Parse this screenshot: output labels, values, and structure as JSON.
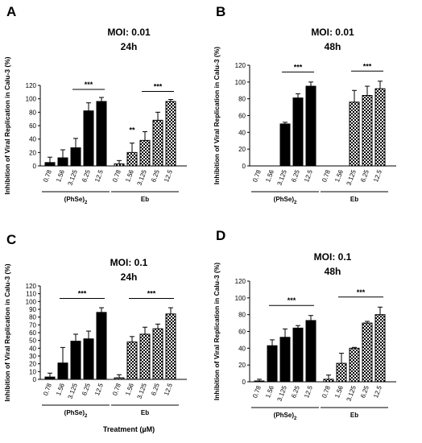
{
  "chart_data": [
    {
      "type": "bar",
      "panel": "A",
      "title": "MOI: 0.01",
      "subtitle": "24h",
      "ylabel": "Inhibition of Viral Replication in Calu-3 (%)",
      "xlabel": "",
      "ylim": [
        0,
        120
      ],
      "yticks": [
        "0",
        "20",
        "40",
        "60",
        "80",
        "100",
        "120"
      ],
      "groups": [
        {
          "name": "(PhSe)",
          "sub": "2",
          "categories": [
            "0.78",
            "1.56",
            "3.125",
            "6.25",
            "12.5"
          ],
          "values": [
            5,
            12,
            27,
            82,
            96
          ],
          "errors": [
            8,
            12,
            14,
            12,
            6
          ],
          "pattern": "solid"
        },
        {
          "name": "Eb",
          "sub": "",
          "categories": [
            "0.78",
            "1.56",
            "3.125",
            "6.25",
            "12.5"
          ],
          "values": [
            3,
            20,
            38,
            68,
            96
          ],
          "errors": [
            5,
            14,
            13,
            12,
            3
          ],
          "pattern": "checker"
        }
      ],
      "significance": [
        {
          "label": "***",
          "group": 0,
          "from": 2,
          "to": 4
        },
        {
          "label": "**",
          "group": 1,
          "from": 1,
          "to": 1
        },
        {
          "label": "***",
          "group": 1,
          "from": 2,
          "to": 4
        }
      ]
    },
    {
      "type": "bar",
      "panel": "B",
      "title": "MOI: 0.01",
      "subtitle": "48h",
      "ylabel": "Inhibition of Viral Replication in Calu-3 (%)",
      "xlabel": "",
      "ylim": [
        0,
        120
      ],
      "yticks": [
        "0",
        "20",
        "40",
        "60",
        "80",
        "100",
        "120"
      ],
      "groups": [
        {
          "name": "(PhSe)",
          "sub": "2",
          "categories": [
            "0.78",
            "1.56",
            "3.125",
            "6.25",
            "12.5"
          ],
          "values": [
            0,
            0,
            50,
            81,
            95
          ],
          "errors": [
            0,
            0,
            2,
            5,
            5
          ],
          "pattern": "solid"
        },
        {
          "name": "Eb",
          "sub": "",
          "categories": [
            "0.78",
            "1.56",
            "3.125",
            "6.25",
            "12.5"
          ],
          "values": [
            0,
            0,
            76,
            84,
            92
          ],
          "errors": [
            0,
            0,
            14,
            11,
            9
          ],
          "pattern": "checker"
        }
      ],
      "significance": [
        {
          "label": "***",
          "group": 0,
          "from": 2,
          "to": 4
        },
        {
          "label": "***",
          "group": 1,
          "from": 2,
          "to": 4
        }
      ]
    },
    {
      "type": "bar",
      "panel": "C",
      "title": "MOI: 0.1",
      "subtitle": "24h",
      "ylabel": "Inhibition of Viral Replication in Calu-3 (%)",
      "xlabel": "Treatment (µM)",
      "ylim": [
        0,
        120
      ],
      "yticks": [
        "0",
        "10",
        "20",
        "30",
        "40",
        "50",
        "60",
        "70",
        "80",
        "90",
        "100",
        "110",
        "120"
      ],
      "groups": [
        {
          "name": "(PhSe)",
          "sub": "2",
          "categories": [
            "0.78",
            "1.56",
            "3.125",
            "6.25",
            "12.5"
          ],
          "values": [
            3,
            21,
            49,
            52,
            86
          ],
          "errors": [
            5,
            20,
            9,
            10,
            6
          ],
          "pattern": "solid"
        },
        {
          "name": "Eb",
          "sub": "",
          "categories": [
            "0.78",
            "1.56",
            "3.125",
            "6.25",
            "12.5"
          ],
          "values": [
            2,
            48,
            58,
            65,
            84
          ],
          "errors": [
            4,
            7,
            9,
            6,
            8
          ],
          "pattern": "checker"
        }
      ],
      "significance": [
        {
          "label": "***",
          "group": 0,
          "from": 1,
          "to": 4
        },
        {
          "label": "***",
          "group": 1,
          "from": 1,
          "to": 4
        }
      ]
    },
    {
      "type": "bar",
      "panel": "D",
      "title": "MOI: 0.1",
      "subtitle": "48h",
      "ylabel": "Inhibition of Viral Replication in Calu-3 (%)",
      "xlabel": "",
      "ylim": [
        0,
        120
      ],
      "yticks": [
        "0",
        "20",
        "40",
        "60",
        "80",
        "100",
        "120"
      ],
      "groups": [
        {
          "name": "(PhSe)",
          "sub": "2",
          "categories": [
            "0.78",
            "1.56",
            "3.125",
            "6.25",
            "12.5"
          ],
          "values": [
            1,
            43,
            53,
            64,
            73
          ],
          "errors": [
            2,
            7,
            10,
            3,
            6
          ],
          "pattern": "solid"
        },
        {
          "name": "Eb",
          "sub": "",
          "categories": [
            "0.78",
            "1.56",
            "3.125",
            "6.25",
            "12.5"
          ],
          "values": [
            3,
            22,
            40,
            70,
            80
          ],
          "errors": [
            5,
            12,
            1,
            2,
            9
          ],
          "pattern": "checker"
        }
      ],
      "significance": [
        {
          "label": "***",
          "group": 0,
          "from": 1,
          "to": 4
        },
        {
          "label": "***",
          "group": 1,
          "from": 1,
          "to": 4
        }
      ]
    }
  ]
}
